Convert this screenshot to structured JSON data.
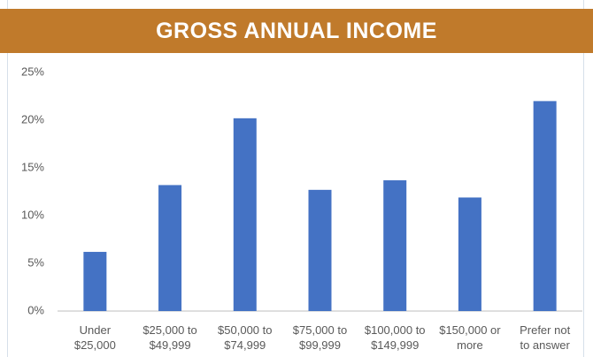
{
  "chart_data": {
    "type": "bar",
    "title": "GROSS ANNUAL INCOME",
    "categories": [
      "Under\n$25,000",
      "$25,000 to\n$49,999",
      "$50,000 to\n$74,999",
      "$75,000 to\n$99,999",
      "$100,000 to\n$149,999",
      "$150,000 or\nmore",
      "Prefer not\nto answer"
    ],
    "values": [
      6.2,
      13.2,
      20.2,
      12.7,
      13.7,
      11.9,
      22.0
    ],
    "color": "#4472c4",
    "ylim": [
      0,
      25
    ],
    "yticks": [
      {
        "value": 0,
        "label": "0%"
      },
      {
        "value": 5,
        "label": "5%"
      },
      {
        "value": 10,
        "label": "10%"
      },
      {
        "value": 15,
        "label": "15%"
      },
      {
        "value": 20,
        "label": "20%"
      },
      {
        "value": 25,
        "label": "25%"
      }
    ],
    "grid": false
  }
}
